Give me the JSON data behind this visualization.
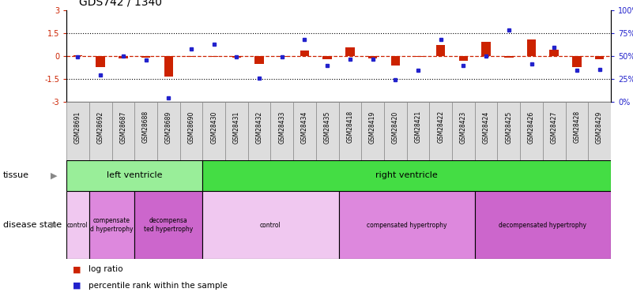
{
  "title": "GDS742 / 1340",
  "samples": [
    "GSM28691",
    "GSM28692",
    "GSM28687",
    "GSM28688",
    "GSM28689",
    "GSM28690",
    "GSM28430",
    "GSM28431",
    "GSM28432",
    "GSM28433",
    "GSM28434",
    "GSM28435",
    "GSM28418",
    "GSM28419",
    "GSM28420",
    "GSM28421",
    "GSM28422",
    "GSM28423",
    "GSM28424",
    "GSM28425",
    "GSM28426",
    "GSM28427",
    "GSM28428",
    "GSM28429"
  ],
  "log_ratio": [
    0.05,
    -0.72,
    -0.15,
    -0.08,
    -1.32,
    -0.05,
    -0.05,
    -0.08,
    -0.52,
    -0.06,
    0.38,
    -0.18,
    0.58,
    -0.12,
    -0.62,
    -0.06,
    0.72,
    -0.32,
    0.92,
    -0.07,
    1.12,
    0.42,
    -0.72,
    -0.18
  ],
  "percentile": [
    49,
    30,
    50,
    46,
    5,
    58,
    63,
    49,
    26,
    49,
    68,
    40,
    47,
    47,
    24,
    35,
    68,
    40,
    50,
    79,
    42,
    60,
    35,
    36
  ],
  "tissue_groups": [
    {
      "label": "left ventricle",
      "start": 0,
      "end": 6,
      "color": "#99EE99"
    },
    {
      "label": "right ventricle",
      "start": 6,
      "end": 24,
      "color": "#44DD44"
    }
  ],
  "disease_groups": [
    {
      "label": "control",
      "start": 0,
      "end": 1,
      "color": "#F0C8F0"
    },
    {
      "label": "compensate\nd hypertrophy",
      "start": 1,
      "end": 3,
      "color": "#DD88DD"
    },
    {
      "label": "decompensa\nted hypertrophy",
      "start": 3,
      "end": 6,
      "color": "#CC66CC"
    },
    {
      "label": "control",
      "start": 6,
      "end": 12,
      "color": "#F0C8F0"
    },
    {
      "label": "compensated hypertrophy",
      "start": 12,
      "end": 18,
      "color": "#DD88DD"
    },
    {
      "label": "decompensated hypertrophy",
      "start": 18,
      "end": 24,
      "color": "#CC66CC"
    }
  ],
  "ylim": [
    -3,
    3
  ],
  "yticks_left": [
    -3,
    -1.5,
    0,
    1.5,
    3
  ],
  "yticks_right": [
    0,
    25,
    50,
    75,
    100
  ],
  "hlines": [
    1.5,
    -1.5
  ],
  "bar_color": "#CC2200",
  "dot_color": "#2222CC",
  "zero_line_color": "#CC2200",
  "title_fontsize": 10,
  "tick_fontsize": 6,
  "label_fontsize": 8
}
